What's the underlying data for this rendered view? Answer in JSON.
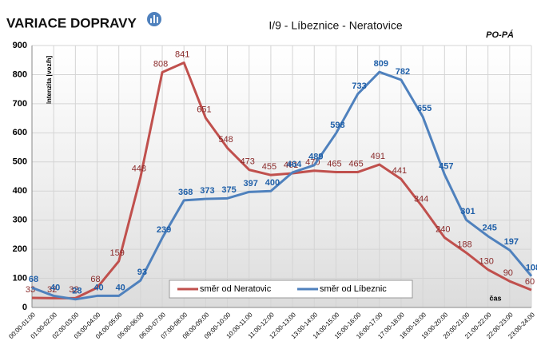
{
  "chart_data": {
    "type": "line",
    "title": "VARIACE DOPRAVY",
    "subtitle": "I/9 - Líbeznice - Neratovice",
    "annotation": "PO-PÁ",
    "y_label": "Intenzita [voz/h]",
    "x_label": "čas",
    "categories": [
      "00:00-01:00",
      "01:00-02:00",
      "02:00-03:00",
      "03:00-04:00",
      "04:00-05:00",
      "05:00-06:00",
      "06:00-07:00",
      "07:00-08:00",
      "08:00-09:00",
      "09:00-10:00",
      "10:00-11:00",
      "11:00-12:00",
      "12:00-13:00",
      "13:00-14:00",
      "14:00-15:00",
      "15:00-16:00",
      "16:00-17:00",
      "17:00-18:00",
      "18:00-19:00",
      "19:00-20:00",
      "20:00-21:00",
      "21:00-22:00",
      "22:00-23:00",
      "23:00-24:00"
    ],
    "series": [
      {
        "name": "směr od Neratovic",
        "color": "#c0504d",
        "label_color": "#8a2b2b",
        "values": [
          33,
          32,
          32,
          68,
          159,
          448,
          808,
          841,
          651,
          548,
          473,
          455,
          461,
          470,
          465,
          465,
          491,
          441,
          344,
          240,
          188,
          130,
          90,
          60
        ]
      },
      {
        "name": "směr od Líbeznic",
        "color": "#4f81bd",
        "label_color": "#1f5fa8",
        "values": [
          68,
          40,
          28,
          40,
          40,
          93,
          239,
          368,
          373,
          375,
          397,
          400,
          464,
          489,
          598,
          733,
          809,
          782,
          655,
          457,
          301,
          245,
          197,
          108
        ]
      }
    ],
    "ylim": [
      0,
      900
    ],
    "yticks": [
      0,
      100,
      200,
      300,
      400,
      500,
      600,
      700,
      800,
      900
    ],
    "grid": true
  }
}
